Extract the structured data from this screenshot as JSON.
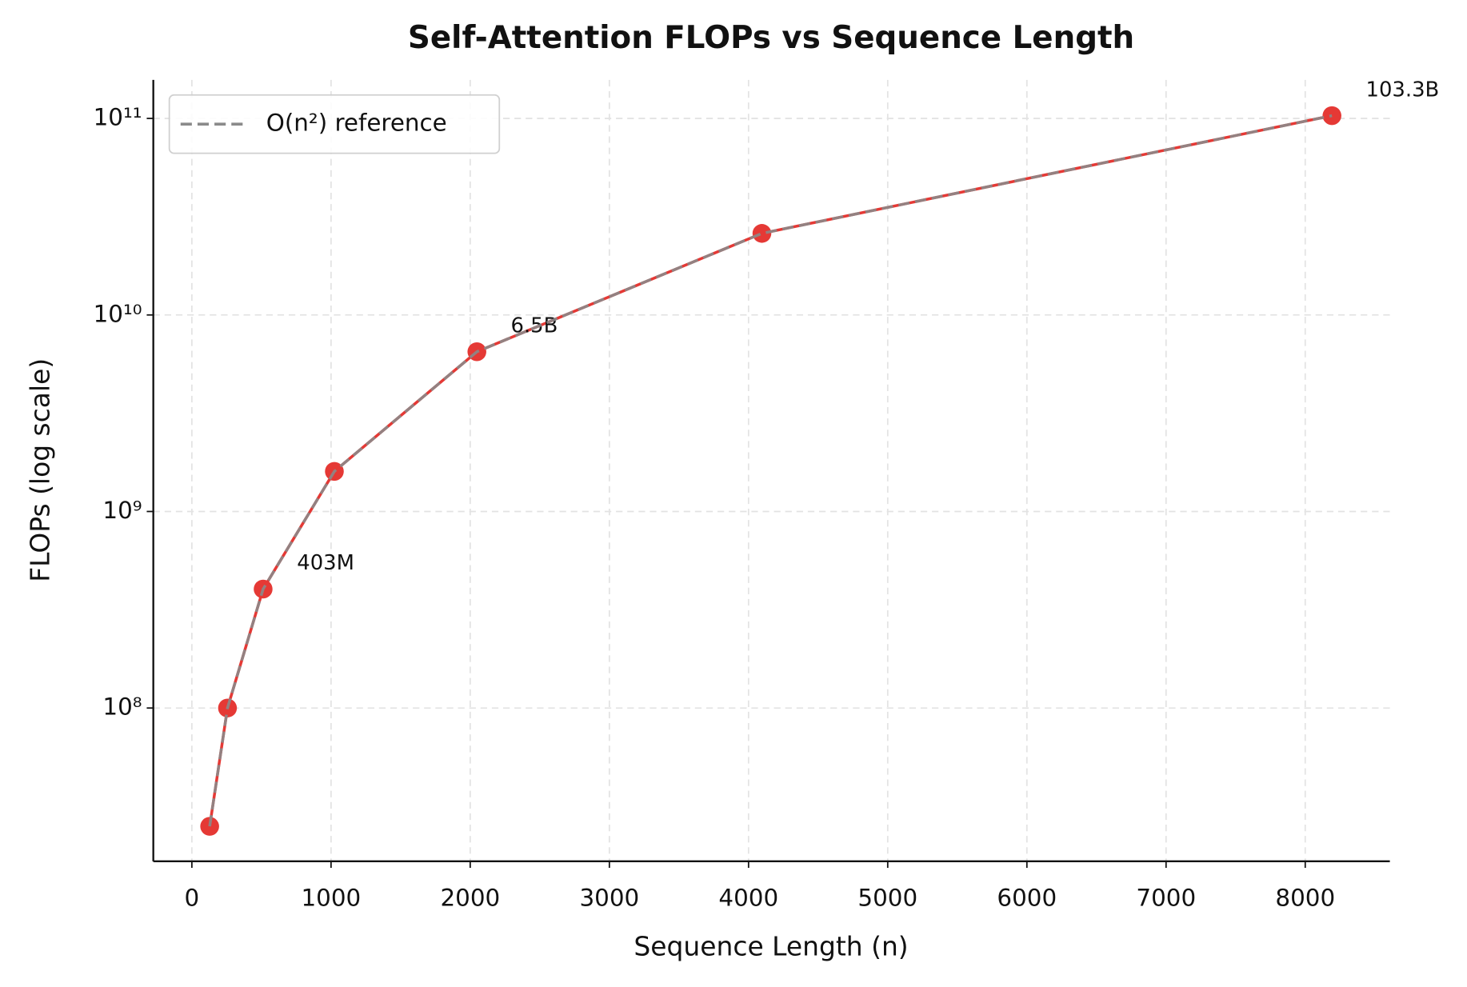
{
  "chart_data": {
    "type": "line",
    "title": "Self-Attention FLOPs vs Sequence Length",
    "x_label": "Sequence Length (n)",
    "y_label": "FLOPs (log scale)",
    "x": [
      128,
      256,
      512,
      1024,
      2048,
      4096,
      8192
    ],
    "series": [
      {
        "color": "#e53935",
        "style": "solid",
        "markers": true,
        "values": [
          25000000,
          100000000,
          403000000,
          1600000000,
          6500000000,
          26000000000,
          103300000000
        ],
        "value_labels": [
          null,
          null,
          "403M",
          null,
          "6.5B",
          null,
          "103.3B"
        ]
      },
      {
        "name": "O(n²) reference",
        "color": "#8a8a8a",
        "style": "dashed",
        "markers": false,
        "values": [
          25000000,
          100000000,
          403000000,
          1600000000,
          6500000000,
          26000000000,
          103300000000
        ]
      }
    ],
    "xlim": [
      -277,
      8608
    ],
    "xticks": [
      0,
      1000,
      2000,
      3000,
      4000,
      5000,
      6000,
      7000,
      8000
    ],
    "ylim": [
      16600000,
      157000000000
    ],
    "y_log": true,
    "yticks": [
      {
        "value": 100000000,
        "label": "10⁸"
      },
      {
        "value": 1000000000,
        "label": "10⁹"
      },
      {
        "value": 10000000000,
        "label": "10¹⁰"
      },
      {
        "value": 100000000000,
        "label": "10¹¹"
      }
    ],
    "grid": true,
    "legend": "upper left"
  }
}
